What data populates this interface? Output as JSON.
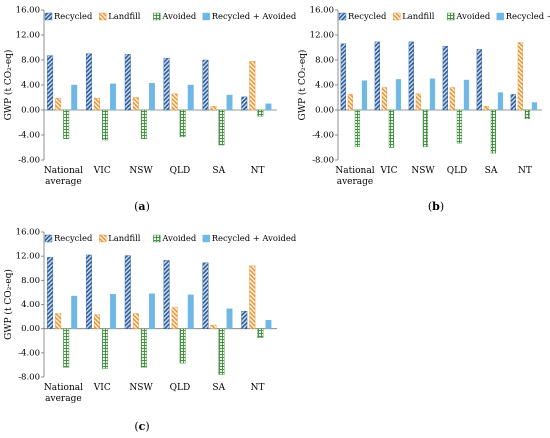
{
  "chart_data": [
    {
      "type": "bar",
      "panel_label": "(a)",
      "ylabel": "GWP (t CO₂-eq)",
      "ylim": [
        -8,
        16
      ],
      "yticks": [
        "16.00",
        "12.00",
        "8.00",
        "4.00",
        "0.00",
        "-4.00",
        "-8.00"
      ],
      "ytick_values": [
        16,
        12,
        8,
        4,
        0,
        -4,
        -8
      ],
      "categories": [
        "National average",
        "VIC",
        "NSW",
        "QLD",
        "SA",
        "NT"
      ],
      "legend_placement": "top",
      "grid": false,
      "series": [
        {
          "name": "Recycled",
          "values": [
            8.7,
            9.0,
            8.9,
            8.3,
            8.0,
            2.1
          ]
        },
        {
          "name": "Landfill",
          "values": [
            1.9,
            1.9,
            2.0,
            2.6,
            0.6,
            7.8
          ]
        },
        {
          "name": "Avoided",
          "values": [
            -4.6,
            -4.8,
            -4.6,
            -4.3,
            -5.6,
            -1.0
          ]
        },
        {
          "name": "Recycled + Avoided",
          "values": [
            4.0,
            4.2,
            4.3,
            4.0,
            2.4,
            1.0
          ]
        }
      ]
    },
    {
      "type": "bar",
      "panel_label": "(b)",
      "ylabel": "GWP (t CO₂-eq)",
      "ylim": [
        -8,
        16
      ],
      "yticks": [
        "16.00",
        "12.00",
        "8.00",
        "4.00",
        "0.00",
        "-4.00",
        "-8.00"
      ],
      "ytick_values": [
        16,
        12,
        8,
        4,
        0,
        -4,
        -8
      ],
      "categories": [
        "National average",
        "VIC",
        "NSW",
        "QLD",
        "SA",
        "NT"
      ],
      "legend_placement": "top",
      "grid": false,
      "series": [
        {
          "name": "Recycled",
          "values": [
            10.6,
            10.9,
            10.9,
            10.2,
            9.7,
            2.5
          ]
        },
        {
          "name": "Landfill",
          "values": [
            2.5,
            3.6,
            2.6,
            3.6,
            0.6,
            10.8
          ]
        },
        {
          "name": "Avoided",
          "values": [
            -5.9,
            -6.0,
            -5.9,
            -5.3,
            -6.9,
            -1.4
          ]
        },
        {
          "name": "Recycled + Avoided",
          "values": [
            4.7,
            4.9,
            5.0,
            4.8,
            2.8,
            1.2
          ]
        }
      ]
    },
    {
      "type": "bar",
      "panel_label": "(c)",
      "ylabel": "GWP (t CO₂-eq)",
      "ylim": [
        -8,
        16
      ],
      "yticks": [
        "16.00",
        "12.00",
        "8.00",
        "4.00",
        "0.00",
        "-4.00",
        "-8.00"
      ],
      "ytick_values": [
        16,
        12,
        8,
        4,
        0,
        -4,
        -8
      ],
      "categories": [
        "National average",
        "VIC",
        "NSW",
        "QLD",
        "SA",
        "NT"
      ],
      "legend_placement": "top",
      "grid": false,
      "series": [
        {
          "name": "Recycled",
          "values": [
            11.8,
            12.2,
            12.1,
            11.3,
            10.9,
            2.9
          ]
        },
        {
          "name": "Landfill",
          "values": [
            2.5,
            2.3,
            2.5,
            3.5,
            0.6,
            10.4
          ]
        },
        {
          "name": "Avoided",
          "values": [
            -6.4,
            -6.6,
            -6.4,
            -5.7,
            -7.6,
            -1.5
          ]
        },
        {
          "name": "Recycled + Avoided",
          "values": [
            5.4,
            5.7,
            5.8,
            5.6,
            3.3,
            1.4
          ]
        }
      ]
    }
  ],
  "series_styles": [
    {
      "color": "#2e5f9e",
      "pattern": "diag-blue"
    },
    {
      "color": "#e8912d",
      "pattern": "diag-orange"
    },
    {
      "color": "#3d8a3d",
      "pattern": "grid-green"
    },
    {
      "color": "#6fb8e6",
      "pattern": "solid-light-blue"
    }
  ]
}
